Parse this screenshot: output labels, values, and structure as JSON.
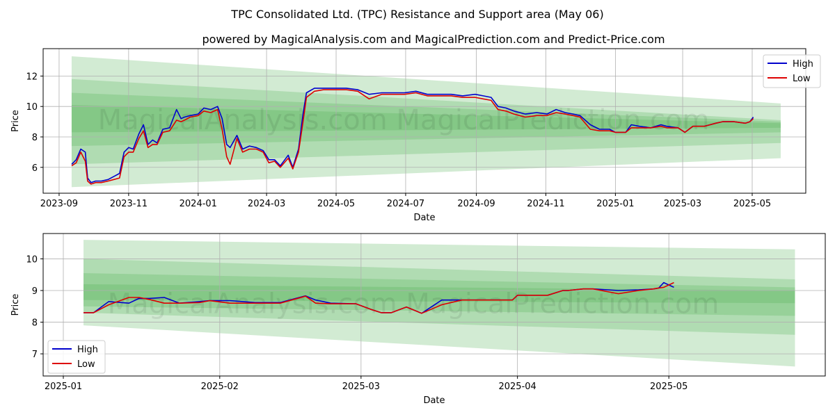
{
  "title": "TPC Consolidated Ltd. (TPC) Resistance and Support area (May 06)",
  "subtitle": "powered by MagicalAnalysis.com and MagicalPrediction.com and Predict-Price.com",
  "watermark": "MagicalAnalysis.com   MagicalPrediction.com",
  "colors": {
    "high": "#0000cc",
    "low": "#dd0000",
    "band": "#4caf50",
    "grid": "#b0b0b0"
  },
  "chart_data": [
    {
      "type": "line",
      "xlabel": "Date",
      "ylabel": "Price",
      "grid": true,
      "legend_position": "top-right",
      "xlim": [
        "2023-08-18",
        "2025-06-17"
      ],
      "ylim": [
        4.3,
        13.8
      ],
      "x_ticks": [
        "2023-09",
        "2023-11",
        "2024-01",
        "2024-03",
        "2024-05",
        "2024-07",
        "2024-09",
        "2024-11",
        "2025-01",
        "2025-03",
        "2025-05"
      ],
      "x_tick_labels": [
        "2023-09",
        "2023-11",
        "2024-01",
        "2024-03",
        "2024-05",
        "2024-07",
        "2024-09",
        "2024-11",
        "2025-01",
        "2025-03",
        "2025-05"
      ],
      "y_ticks": [
        6,
        8,
        10,
        12
      ],
      "bands": [
        {
          "x": [
            "2023-09-12",
            "2025-05-26"
          ],
          "upper": [
            13.3,
            10.2
          ],
          "lower": [
            4.7,
            6.6
          ]
        },
        {
          "x": [
            "2023-09-12",
            "2025-05-26"
          ],
          "upper": [
            11.8,
            9.1
          ],
          "lower": [
            6.2,
            7.6
          ]
        },
        {
          "x": [
            "2023-09-12",
            "2025-05-26"
          ],
          "upper": [
            10.9,
            9.0
          ],
          "lower": [
            7.4,
            8.3
          ]
        },
        {
          "x": [
            "2023-09-12",
            "2025-05-26"
          ],
          "upper": [
            10.1,
            8.9
          ],
          "lower": [
            8.3,
            8.6
          ]
        }
      ],
      "series": [
        {
          "name": "High",
          "x": [
            "2023-09-12",
            "2023-09-16",
            "2023-09-20",
            "2023-09-24",
            "2023-09-26",
            "2023-09-29",
            "2023-10-03",
            "2023-10-08",
            "2023-10-14",
            "2023-10-19",
            "2023-10-24",
            "2023-10-28",
            "2023-11-01",
            "2023-11-05",
            "2023-11-10",
            "2023-11-14",
            "2023-11-18",
            "2023-11-22",
            "2023-11-26",
            "2023-12-01",
            "2023-12-07",
            "2023-12-13",
            "2023-12-17",
            "2023-12-20",
            "2023-12-25",
            "2024-01-01",
            "2024-01-06",
            "2024-01-12",
            "2024-01-18",
            "2024-01-22",
            "2024-01-26",
            "2024-01-29",
            "2024-02-04",
            "2024-02-09",
            "2024-02-15",
            "2024-02-21",
            "2024-02-27",
            "2024-03-03",
            "2024-03-08",
            "2024-03-13",
            "2024-03-20",
            "2024-03-24",
            "2024-03-29",
            "2024-04-02",
            "2024-04-05",
            "2024-04-12",
            "2024-04-20",
            "2024-05-01",
            "2024-05-10",
            "2024-05-20",
            "2024-05-30",
            "2024-06-10",
            "2024-06-20",
            "2024-06-30",
            "2024-07-10",
            "2024-07-20",
            "2024-07-31",
            "2024-08-10",
            "2024-08-20",
            "2024-08-31",
            "2024-09-07",
            "2024-09-14",
            "2024-09-20",
            "2024-09-27",
            "2024-10-04",
            "2024-10-14",
            "2024-10-24",
            "2024-11-02",
            "2024-11-10",
            "2024-11-18",
            "2024-11-25",
            "2024-12-01",
            "2024-12-10",
            "2024-12-18",
            "2024-12-27",
            "2025-01-01",
            "2025-01-10",
            "2025-01-15",
            "2025-01-22",
            "2025-02-01",
            "2025-02-10",
            "2025-02-15",
            "2025-02-25",
            "2025-03-03",
            "2025-03-10",
            "2025-03-20",
            "2025-03-30",
            "2025-04-05",
            "2025-04-15",
            "2025-04-25",
            "2025-04-29",
            "2025-05-02"
          ],
          "values": [
            6.2,
            6.5,
            7.2,
            7.0,
            5.3,
            5.0,
            5.1,
            5.1,
            5.2,
            5.4,
            5.6,
            7.0,
            7.3,
            7.2,
            8.2,
            8.8,
            7.5,
            7.8,
            7.6,
            8.5,
            8.6,
            9.8,
            9.2,
            9.3,
            9.4,
            9.5,
            9.9,
            9.8,
            10.0,
            9.2,
            7.5,
            7.3,
            8.1,
            7.2,
            7.4,
            7.3,
            7.1,
            6.5,
            6.5,
            6.1,
            6.8,
            6.0,
            7.2,
            9.5,
            10.9,
            11.2,
            11.2,
            11.2,
            11.2,
            11.1,
            10.8,
            10.9,
            10.9,
            10.9,
            11.0,
            10.8,
            10.8,
            10.8,
            10.7,
            10.8,
            10.7,
            10.6,
            10.0,
            9.9,
            9.7,
            9.5,
            9.6,
            9.5,
            9.8,
            9.6,
            9.5,
            9.4,
            8.8,
            8.5,
            8.5,
            8.3,
            8.3,
            8.8,
            8.7,
            8.6,
            8.8,
            8.7,
            8.6,
            8.3,
            8.7,
            8.7,
            8.9,
            9.0,
            9.0,
            8.9,
            9.0,
            9.3
          ]
        },
        {
          "name": "Low",
          "x": [
            "2023-09-12",
            "2023-09-16",
            "2023-09-20",
            "2023-09-24",
            "2023-09-26",
            "2023-09-29",
            "2023-10-03",
            "2023-10-08",
            "2023-10-14",
            "2023-10-19",
            "2023-10-24",
            "2023-10-28",
            "2023-11-01",
            "2023-11-05",
            "2023-11-10",
            "2023-11-14",
            "2023-11-18",
            "2023-11-22",
            "2023-11-26",
            "2023-12-01",
            "2023-12-07",
            "2023-12-13",
            "2023-12-17",
            "2023-12-20",
            "2023-12-25",
            "2024-01-01",
            "2024-01-06",
            "2024-01-12",
            "2024-01-18",
            "2024-01-22",
            "2024-01-26",
            "2024-01-29",
            "2024-02-04",
            "2024-02-09",
            "2024-02-15",
            "2024-02-21",
            "2024-02-27",
            "2024-03-03",
            "2024-03-08",
            "2024-03-13",
            "2024-03-20",
            "2024-03-24",
            "2024-03-29",
            "2024-04-02",
            "2024-04-05",
            "2024-04-12",
            "2024-04-20",
            "2024-05-01",
            "2024-05-10",
            "2024-05-20",
            "2024-05-30",
            "2024-06-10",
            "2024-06-20",
            "2024-06-30",
            "2024-07-10",
            "2024-07-20",
            "2024-07-31",
            "2024-08-10",
            "2024-08-20",
            "2024-08-31",
            "2024-09-07",
            "2024-09-14",
            "2024-09-20",
            "2024-09-27",
            "2024-10-04",
            "2024-10-14",
            "2024-10-24",
            "2024-11-02",
            "2024-11-10",
            "2024-11-18",
            "2024-11-25",
            "2024-12-01",
            "2024-12-10",
            "2024-12-18",
            "2024-12-27",
            "2025-01-01",
            "2025-01-10",
            "2025-01-15",
            "2025-01-22",
            "2025-02-01",
            "2025-02-10",
            "2025-02-15",
            "2025-02-25",
            "2025-03-03",
            "2025-03-10",
            "2025-03-20",
            "2025-03-30",
            "2025-04-05",
            "2025-04-15",
            "2025-04-25",
            "2025-04-29",
            "2025-05-02"
          ],
          "values": [
            6.1,
            6.3,
            7.0,
            6.4,
            5.1,
            4.9,
            5.0,
            5.0,
            5.1,
            5.2,
            5.3,
            6.7,
            7.0,
            7.0,
            7.9,
            8.4,
            7.3,
            7.5,
            7.5,
            8.3,
            8.4,
            9.1,
            9.0,
            9.1,
            9.3,
            9.4,
            9.7,
            9.6,
            9.8,
            8.5,
            6.7,
            6.2,
            7.9,
            7.0,
            7.2,
            7.2,
            7.0,
            6.3,
            6.4,
            6.0,
            6.6,
            5.9,
            7.0,
            9.0,
            10.6,
            11.0,
            11.1,
            11.1,
            11.1,
            11.0,
            10.5,
            10.8,
            10.8,
            10.8,
            10.9,
            10.7,
            10.7,
            10.7,
            10.6,
            10.6,
            10.5,
            10.4,
            9.8,
            9.7,
            9.5,
            9.3,
            9.4,
            9.4,
            9.6,
            9.5,
            9.4,
            9.3,
            8.5,
            8.4,
            8.4,
            8.3,
            8.3,
            8.6,
            8.6,
            8.6,
            8.7,
            8.6,
            8.6,
            8.3,
            8.7,
            8.7,
            8.9,
            9.0,
            9.0,
            8.9,
            9.0,
            9.2
          ]
        }
      ]
    },
    {
      "type": "line",
      "xlabel": "Date",
      "ylabel": "Price",
      "grid": true,
      "legend_position": "bottom-left",
      "xlim": [
        "2024-12-28",
        "2025-06-01"
      ],
      "ylim": [
        6.3,
        10.8
      ],
      "x_ticks": [
        "2025-01-01",
        "2025-02-01",
        "2025-03-01",
        "2025-04-01",
        "2025-05-01"
      ],
      "x_tick_labels": [
        "2025-01",
        "2025-02",
        "2025-03",
        "2025-04",
        "2025-05"
      ],
      "y_ticks": [
        7,
        8,
        9,
        10
      ],
      "bands": [
        {
          "x": [
            "2025-01-05",
            "2025-05-26"
          ],
          "upper": [
            10.6,
            10.3
          ],
          "lower": [
            7.9,
            6.6
          ]
        },
        {
          "x": [
            "2025-01-05",
            "2025-05-26"
          ],
          "upper": [
            10.0,
            9.35
          ],
          "lower": [
            8.3,
            7.6
          ]
        },
        {
          "x": [
            "2025-01-05",
            "2025-05-26"
          ],
          "upper": [
            9.55,
            9.1
          ],
          "lower": [
            8.5,
            8.2
          ]
        },
        {
          "x": [
            "2025-01-05",
            "2025-05-26"
          ],
          "upper": [
            9.2,
            9.0
          ],
          "lower": [
            8.7,
            8.6
          ]
        }
      ],
      "series": [
        {
          "name": "High",
          "x": [
            "2025-01-05",
            "2025-01-07",
            "2025-01-10",
            "2025-01-14",
            "2025-01-16",
            "2025-01-18",
            "2025-01-21",
            "2025-01-24",
            "2025-01-28",
            "2025-01-30",
            "2025-02-03",
            "2025-02-08",
            "2025-02-13",
            "2025-02-18",
            "2025-02-20",
            "2025-02-23",
            "2025-02-28",
            "2025-03-03",
            "2025-03-05",
            "2025-03-07",
            "2025-03-10",
            "2025-03-13",
            "2025-03-17",
            "2025-03-21",
            "2025-03-25",
            "2025-03-27",
            "2025-03-31",
            "2025-04-01",
            "2025-04-04",
            "2025-04-07",
            "2025-04-10",
            "2025-04-11",
            "2025-04-14",
            "2025-04-16",
            "2025-04-21",
            "2025-04-25",
            "2025-04-28",
            "2025-04-29",
            "2025-04-30",
            "2025-05-02"
          ],
          "values": [
            8.3,
            8.3,
            8.65,
            8.6,
            8.75,
            8.75,
            8.78,
            8.6,
            8.65,
            8.68,
            8.68,
            8.62,
            8.62,
            8.83,
            8.7,
            8.6,
            8.58,
            8.4,
            8.3,
            8.3,
            8.48,
            8.28,
            8.7,
            8.7,
            8.7,
            8.7,
            8.7,
            8.85,
            8.85,
            8.85,
            9.0,
            9.0,
            9.05,
            9.05,
            9.0,
            9.02,
            9.05,
            9.08,
            9.25,
            9.1
          ]
        },
        {
          "name": "Low",
          "x": [
            "2025-01-05",
            "2025-01-07",
            "2025-01-10",
            "2025-01-14",
            "2025-01-16",
            "2025-01-18",
            "2025-01-21",
            "2025-01-24",
            "2025-01-28",
            "2025-01-30",
            "2025-02-03",
            "2025-02-08",
            "2025-02-13",
            "2025-02-18",
            "2025-02-20",
            "2025-02-23",
            "2025-02-28",
            "2025-03-03",
            "2025-03-05",
            "2025-03-07",
            "2025-03-10",
            "2025-03-13",
            "2025-03-17",
            "2025-03-21",
            "2025-03-25",
            "2025-03-27",
            "2025-03-31",
            "2025-04-01",
            "2025-04-04",
            "2025-04-07",
            "2025-04-10",
            "2025-04-11",
            "2025-04-14",
            "2025-04-16",
            "2025-04-21",
            "2025-04-25",
            "2025-04-28",
            "2025-04-29",
            "2025-04-30",
            "2025-05-02"
          ],
          "values": [
            8.3,
            8.3,
            8.55,
            8.78,
            8.78,
            8.72,
            8.6,
            8.6,
            8.62,
            8.68,
            8.6,
            8.6,
            8.6,
            8.82,
            8.6,
            8.58,
            8.58,
            8.4,
            8.3,
            8.3,
            8.48,
            8.28,
            8.55,
            8.7,
            8.7,
            8.7,
            8.7,
            8.85,
            8.85,
            8.85,
            9.0,
            9.0,
            9.05,
            9.05,
            8.9,
            9.0,
            9.05,
            9.08,
            9.1,
            9.25
          ]
        }
      ]
    }
  ]
}
